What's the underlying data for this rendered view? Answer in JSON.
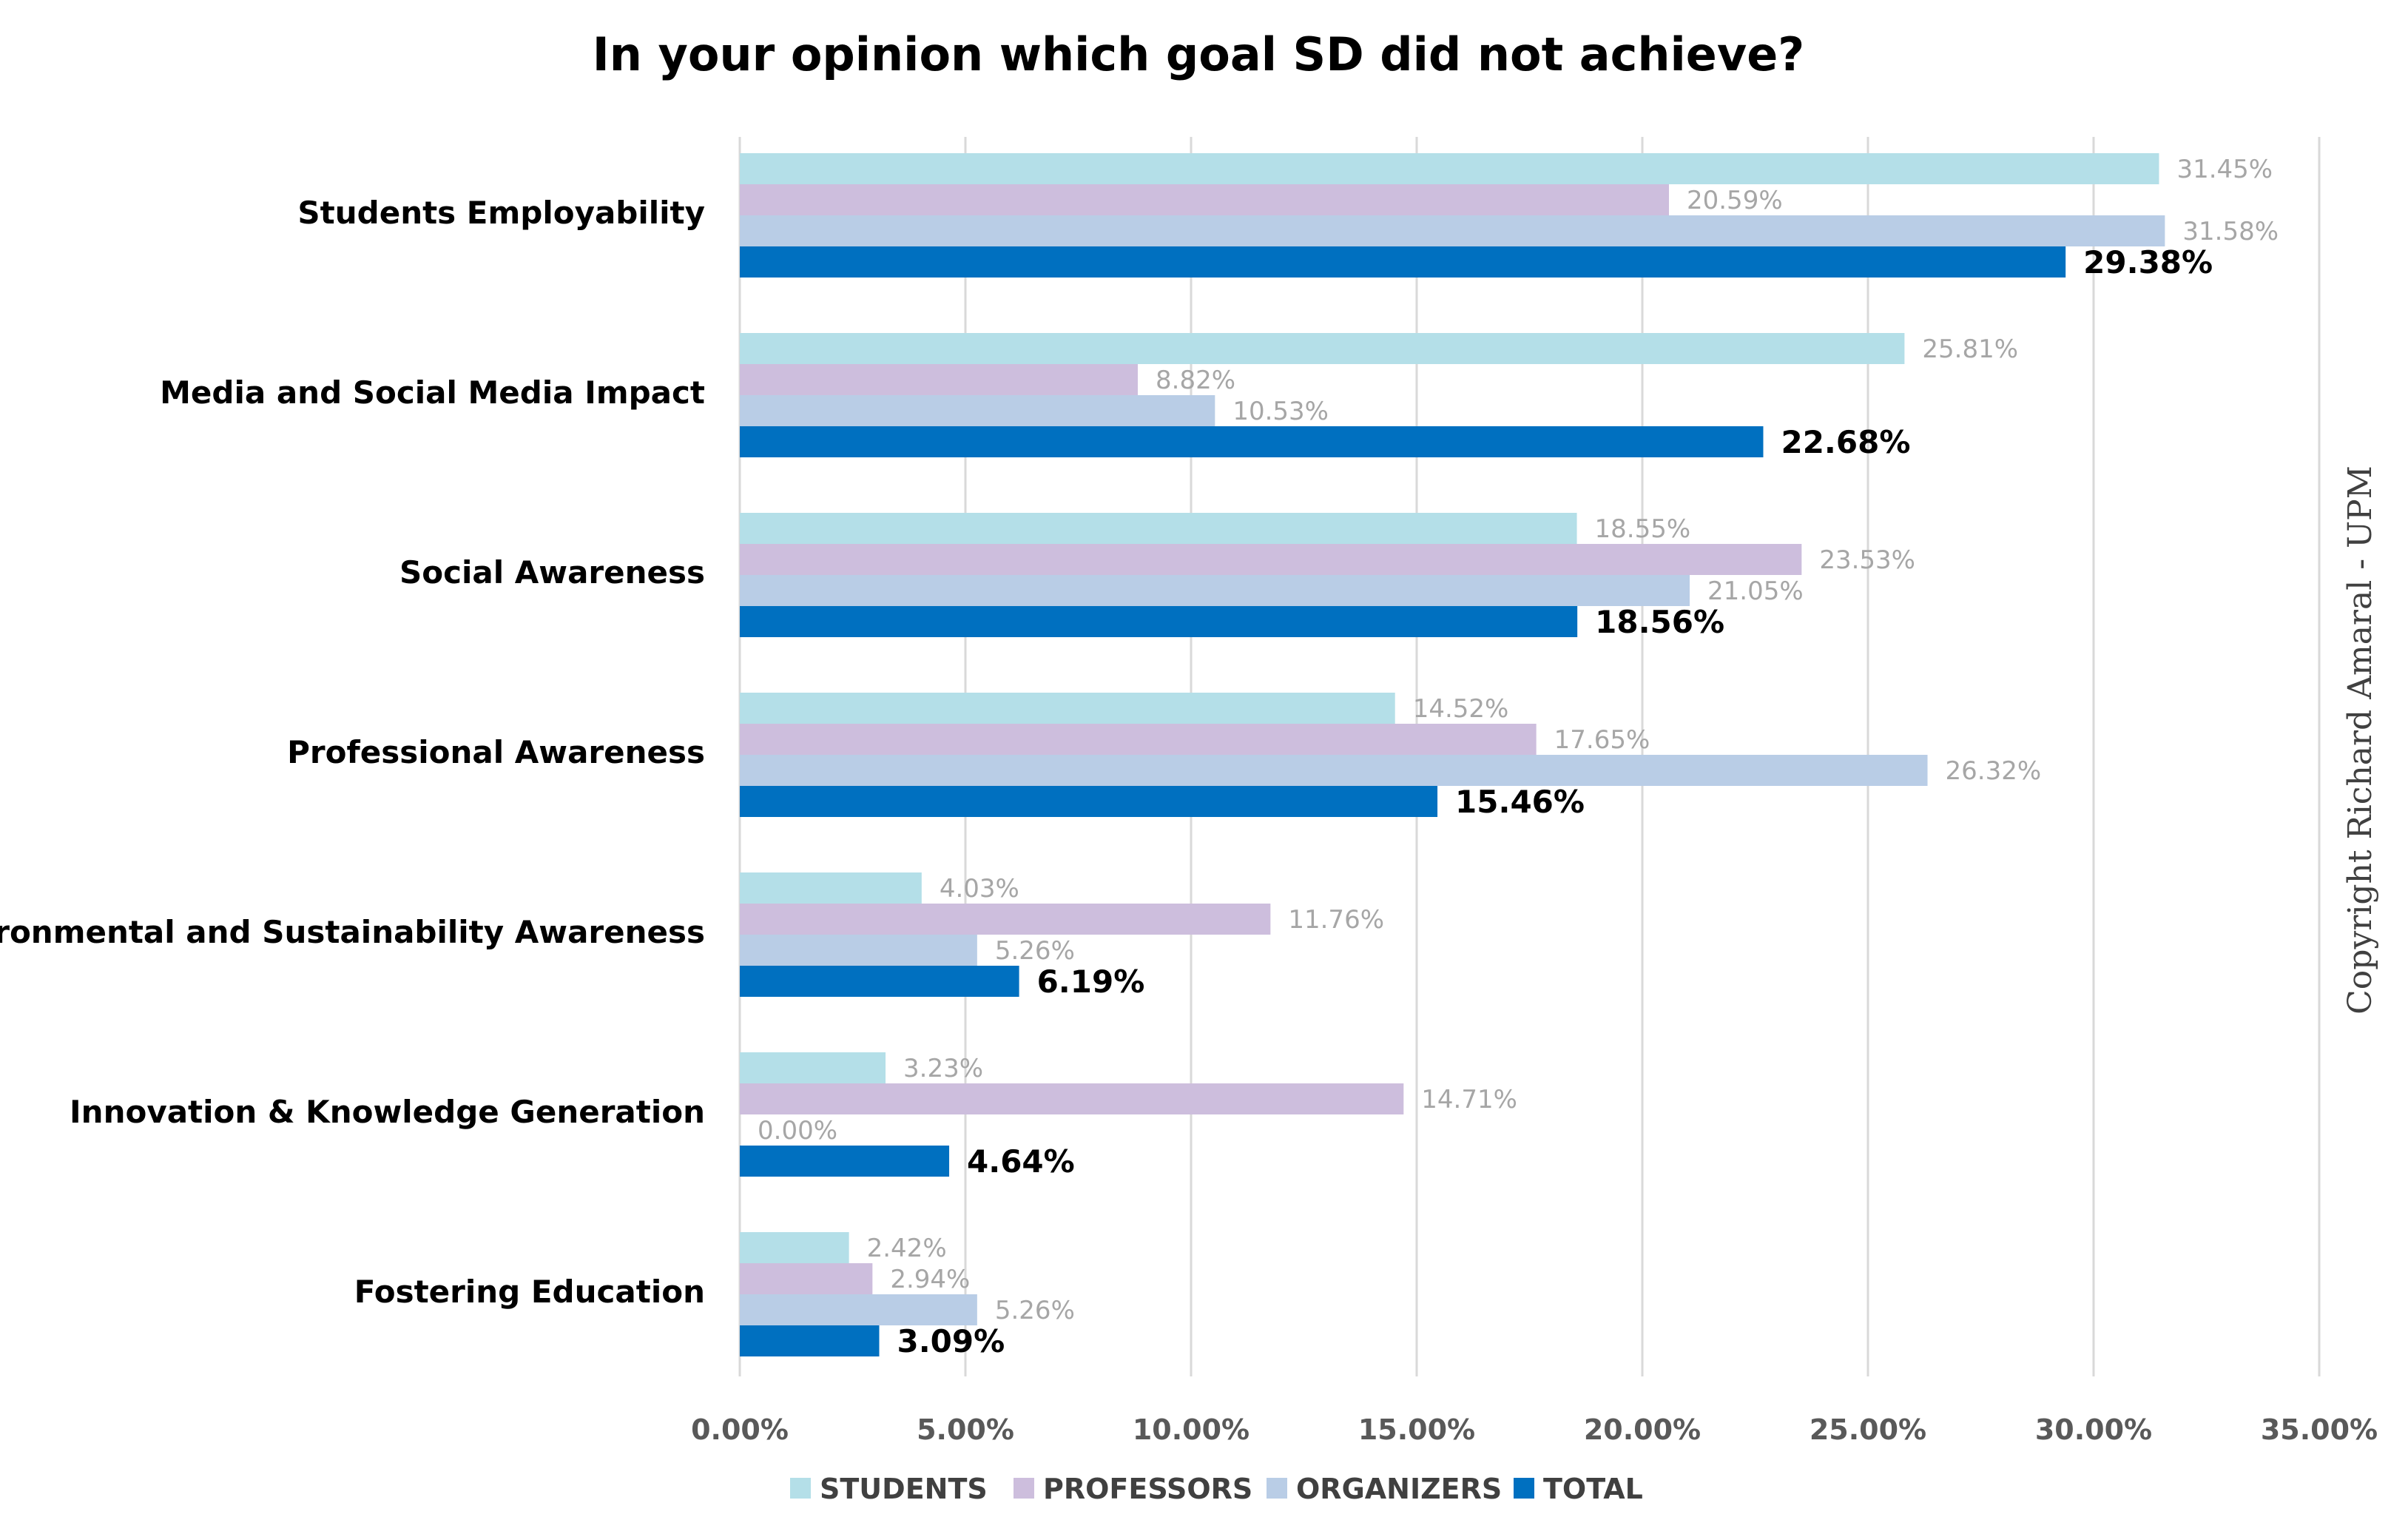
{
  "chart_data": {
    "type": "bar",
    "orientation": "horizontal",
    "title": "In your opinion which goal SD did not achieve?",
    "xlabel": "",
    "ylabel": "",
    "xlim": [
      0,
      35
    ],
    "grid": true,
    "legend_position": "bottom",
    "categories": [
      "Students Employability",
      "Media and Social Media Impact",
      "Social Awareness",
      "Professional Awareness",
      "Environmental and Sustainability Awareness",
      "Innovation & Knowledge Generation",
      "Fostering Education"
    ],
    "x_ticks": [
      0,
      5,
      10,
      15,
      20,
      25,
      30,
      35
    ],
    "x_tick_labels": [
      "0.00%",
      "5.00%",
      "10.00%",
      "15.00%",
      "20.00%",
      "25.00%",
      "30.00%",
      "35.00%"
    ],
    "series": [
      {
        "name": "STUDENTS",
        "color": "#b4dfe8",
        "values": [
          31.45,
          25.81,
          18.55,
          14.52,
          4.03,
          3.23,
          2.42
        ],
        "labels": [
          "31.45%",
          "25.81%",
          "18.55%",
          "14.52%",
          "4.03%",
          "3.23%",
          "2.42%"
        ]
      },
      {
        "name": "PROFESSORS",
        "color": "#cdbedd",
        "values": [
          20.59,
          8.82,
          23.53,
          17.65,
          11.76,
          14.71,
          2.94
        ],
        "labels": [
          "20.59%",
          "8.82%",
          "23.53%",
          "17.65%",
          "11.76%",
          "14.71%",
          "2.94%"
        ]
      },
      {
        "name": "ORGANIZERS",
        "color": "#b9cde6",
        "values": [
          31.58,
          10.53,
          21.05,
          26.32,
          5.26,
          0.0,
          5.26
        ],
        "labels": [
          "31.58%",
          "10.53%",
          "21.05%",
          "26.32%",
          "5.26%",
          "0.00%",
          "5.26%"
        ]
      },
      {
        "name": "TOTAL",
        "color": "#0070c0",
        "values": [
          29.38,
          22.68,
          18.56,
          15.46,
          6.19,
          4.64,
          3.09
        ],
        "labels": [
          "29.38%",
          "22.68%",
          "18.56%",
          "15.46%",
          "6.19%",
          "4.64%",
          "3.09%"
        ]
      }
    ],
    "annotation": "Copyright Richard Amaral - UPM"
  }
}
